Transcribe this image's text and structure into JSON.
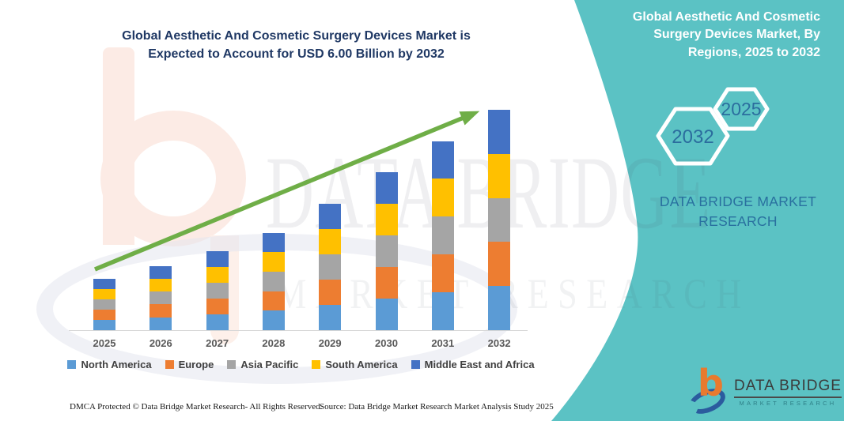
{
  "left_chart": {
    "title_line1": "Global Aesthetic And Cosmetic Surgery Devices Market is",
    "title_line2": "Expected to Account for USD 6.00 Billion by 2032"
  },
  "right_panel": {
    "title": "Global Aesthetic And Cosmetic Surgery Devices Market, By Regions, 2025 to 2032",
    "hexagon_back_year": "2032",
    "hexagon_front_year": "2025",
    "brand_text": "DATA BRIDGE MARKET RESEARCH",
    "colors": {
      "background": "#5bc2c4",
      "hexagon_outline": "#ffffff",
      "year_text": "#2b6d9e",
      "brand_text": "#29709f"
    }
  },
  "watermark": {
    "row1": "DATA BRIDGE",
    "row2": "MARKET RESEARCH"
  },
  "footer": {
    "dmca": "DMCA Protected © Data Bridge Market Research-  All Rights Reserved.",
    "source": "Source: Data Bridge Market Research  Market Analysis Study 2025"
  },
  "logo": {
    "icon_b": "b",
    "name": "DATA BRIDGE",
    "tagline": "MARKET RESEARCH"
  },
  "chart_data": {
    "type": "bar",
    "stacked": true,
    "title": "Global Aesthetic And Cosmetic Surgery Devices Market is Expected to Account for USD 6.00 Billion by 2032",
    "unit": "USD Billion",
    "categories": [
      "2025",
      "2026",
      "2027",
      "2028",
      "2029",
      "2030",
      "2031",
      "2032"
    ],
    "series": [
      {
        "name": "North America",
        "color": "#5B9BD5",
        "values": [
          0.28,
          0.35,
          0.43,
          0.53,
          0.69,
          0.86,
          1.03,
          1.2
        ]
      },
      {
        "name": "Europe",
        "color": "#ED7D31",
        "values": [
          0.28,
          0.35,
          0.43,
          0.53,
          0.69,
          0.86,
          1.03,
          1.2
        ]
      },
      {
        "name": "Asia Pacific",
        "color": "#A5A5A5",
        "values": [
          0.28,
          0.35,
          0.43,
          0.53,
          0.69,
          0.86,
          1.03,
          1.2
        ]
      },
      {
        "name": "South America",
        "color": "#FFC000",
        "values": [
          0.28,
          0.35,
          0.43,
          0.53,
          0.69,
          0.86,
          1.03,
          1.2
        ]
      },
      {
        "name": "Middle East and Africa",
        "color": "#4472C4",
        "values": [
          0.28,
          0.35,
          0.43,
          0.53,
          0.69,
          0.86,
          1.03,
          1.2
        ]
      }
    ],
    "estimated_totals": [
      1.4,
      1.75,
      2.15,
      2.65,
      3.45,
      4.3,
      5.15,
      6.0
    ],
    "ylim": [
      0,
      6.2
    ],
    "grid": false,
    "legend_position": "bottom",
    "trend_arrow_color": "#6FAE47",
    "highlight_value_2032": "USD 6.00 Billion"
  }
}
